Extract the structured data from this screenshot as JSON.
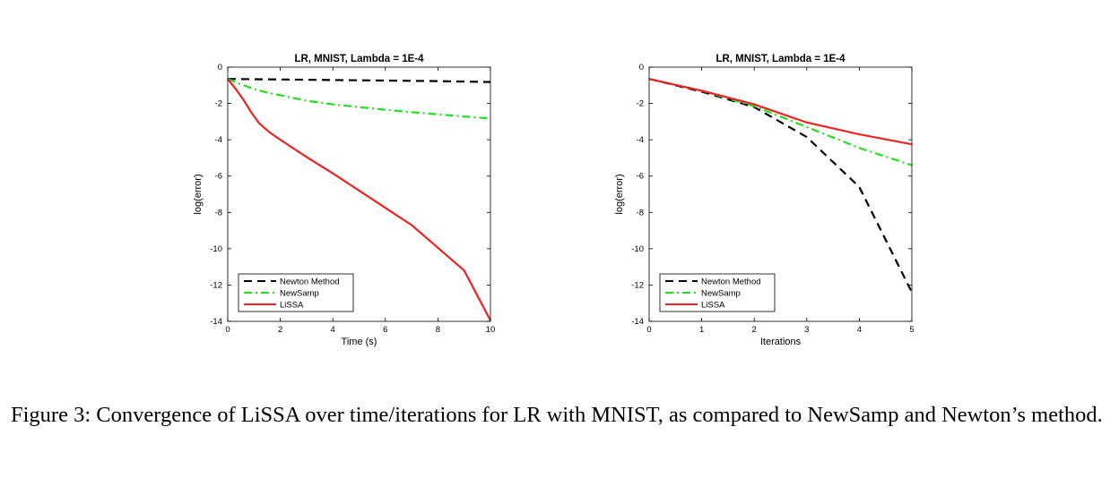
{
  "chart_data": [
    {
      "type": "line",
      "title": "LR, MNIST, Lambda = 1E-4",
      "xlabel": "Time (s)",
      "ylabel": "log(error)",
      "xlim": [
        0,
        10
      ],
      "ylim": [
        -14,
        0
      ],
      "xticks": [
        0,
        2,
        4,
        6,
        8,
        10
      ],
      "yticks": [
        0,
        -2,
        -4,
        -6,
        -8,
        -10,
        -12,
        -14
      ],
      "legend_position": "bottom-left",
      "grid": false,
      "series": [
        {
          "name": "Newton Method",
          "color": "#000000",
          "dash": "dashed",
          "x": [
            0,
            2,
            4,
            6,
            8,
            10
          ],
          "y": [
            -0.65,
            -0.68,
            -0.71,
            -0.74,
            -0.77,
            -0.82
          ]
        },
        {
          "name": "NewSamp",
          "color": "#22dd22",
          "dash": "dashdot",
          "x": [
            0,
            0.5,
            1,
            1.5,
            2,
            3,
            4,
            5,
            6,
            7,
            8,
            9,
            10
          ],
          "y": [
            -0.65,
            -0.95,
            -1.2,
            -1.4,
            -1.55,
            -1.85,
            -2.05,
            -2.2,
            -2.35,
            -2.48,
            -2.6,
            -2.72,
            -2.83
          ]
        },
        {
          "name": "LiSSA",
          "color": "#ee2222",
          "dash": "solid",
          "x": [
            0,
            0.3,
            0.6,
            0.9,
            1.2,
            1.6,
            2,
            3,
            4,
            5,
            6,
            7,
            8,
            9,
            10
          ],
          "y": [
            -0.65,
            -1.2,
            -1.8,
            -2.5,
            -3.1,
            -3.6,
            -4.0,
            -4.95,
            -5.85,
            -6.8,
            -7.75,
            -8.7,
            -9.95,
            -11.2,
            -13.95
          ]
        }
      ]
    },
    {
      "type": "line",
      "title": "LR, MNIST, Lambda = 1E-4",
      "xlabel": "Iterations",
      "ylabel": "log(error)",
      "xlim": [
        0,
        5
      ],
      "ylim": [
        -14,
        0
      ],
      "xticks": [
        0,
        1,
        2,
        3,
        4,
        5
      ],
      "yticks": [
        0,
        -2,
        -4,
        -6,
        -8,
        -10,
        -12,
        -14
      ],
      "legend_position": "bottom-left",
      "grid": false,
      "series": [
        {
          "name": "Newton Method",
          "color": "#000000",
          "dash": "dashed",
          "x": [
            0,
            1,
            2,
            3,
            4,
            5
          ],
          "y": [
            -0.65,
            -1.35,
            -2.2,
            -3.85,
            -6.6,
            -12.4
          ]
        },
        {
          "name": "NewSamp",
          "color": "#22dd22",
          "dash": "dashdot",
          "x": [
            0,
            1,
            2,
            3,
            4,
            5
          ],
          "y": [
            -0.65,
            -1.3,
            -2.15,
            -3.3,
            -4.45,
            -5.4
          ]
        },
        {
          "name": "LiSSA",
          "color": "#ee2222",
          "dash": "solid",
          "x": [
            0,
            1,
            2,
            3,
            4,
            5
          ],
          "y": [
            -0.65,
            -1.3,
            -2.05,
            -3.05,
            -3.7,
            -4.25
          ]
        }
      ]
    }
  ],
  "caption": {
    "text": "Figure 3:  Convergence of LiSSA over time/iterations for LR with MNIST, as compared to NewSamp and Newton’s method."
  }
}
